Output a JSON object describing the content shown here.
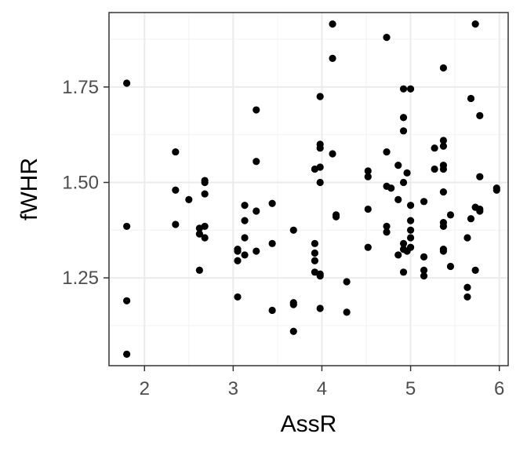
{
  "chart_data": {
    "type": "scatter",
    "title": "",
    "xlabel": "AssR",
    "ylabel": "fWHR",
    "xlim": [
      1.6,
      6.1
    ],
    "ylim": [
      1.02,
      1.945
    ],
    "x_ticks": [
      2,
      3,
      4,
      5,
      6
    ],
    "x_tick_labels": [
      "2",
      "3",
      "4",
      "5",
      "6"
    ],
    "y_ticks": [
      1.25,
      1.5,
      1.75
    ],
    "y_tick_labels": [
      "1.25",
      "1.50",
      "1.75"
    ],
    "x_minor": [
      2.5,
      3.5,
      4.5,
      5.5
    ],
    "y_minor": [
      1.125,
      1.375,
      1.625,
      1.875
    ],
    "grid": true,
    "legend": "none",
    "point_color": "#000000",
    "points": [
      [
        1.8,
        1.76
      ],
      [
        1.8,
        1.385
      ],
      [
        1.8,
        1.19
      ],
      [
        1.8,
        1.05
      ],
      [
        2.35,
        1.58
      ],
      [
        2.35,
        1.48
      ],
      [
        2.35,
        1.39
      ],
      [
        2.5,
        1.455
      ],
      [
        2.62,
        1.38
      ],
      [
        2.62,
        1.365
      ],
      [
        2.62,
        1.27
      ],
      [
        2.68,
        1.505
      ],
      [
        2.68,
        1.5
      ],
      [
        2.68,
        1.47
      ],
      [
        2.68,
        1.385
      ],
      [
        2.68,
        1.355
      ],
      [
        3.05,
        1.325
      ],
      [
        3.05,
        1.32
      ],
      [
        3.05,
        1.295
      ],
      [
        3.05,
        1.2
      ],
      [
        3.13,
        1.44
      ],
      [
        3.13,
        1.4
      ],
      [
        3.13,
        1.355
      ],
      [
        3.13,
        1.31
      ],
      [
        3.26,
        1.69
      ],
      [
        3.26,
        1.555
      ],
      [
        3.26,
        1.425
      ],
      [
        3.26,
        1.32
      ],
      [
        3.44,
        1.445
      ],
      [
        3.44,
        1.34
      ],
      [
        3.44,
        1.165
      ],
      [
        3.68,
        1.375
      ],
      [
        3.68,
        1.185
      ],
      [
        3.68,
        1.18
      ],
      [
        3.68,
        1.11
      ],
      [
        3.92,
        1.535
      ],
      [
        3.92,
        1.34
      ],
      [
        3.92,
        1.315
      ],
      [
        3.92,
        1.295
      ],
      [
        3.92,
        1.265
      ],
      [
        3.98,
        1.725
      ],
      [
        3.98,
        1.6
      ],
      [
        3.98,
        1.59
      ],
      [
        3.98,
        1.54
      ],
      [
        3.98,
        1.5
      ],
      [
        3.98,
        1.26
      ],
      [
        3.98,
        1.255
      ],
      [
        3.98,
        1.17
      ],
      [
        4.12,
        1.915
      ],
      [
        4.12,
        1.825
      ],
      [
        4.12,
        1.575
      ],
      [
        4.16,
        1.415
      ],
      [
        4.16,
        1.41
      ],
      [
        4.28,
        1.24
      ],
      [
        4.28,
        1.16
      ],
      [
        4.52,
        1.53
      ],
      [
        4.52,
        1.515
      ],
      [
        4.52,
        1.43
      ],
      [
        4.52,
        1.33
      ],
      [
        4.73,
        1.88
      ],
      [
        4.73,
        1.58
      ],
      [
        4.73,
        1.49
      ],
      [
        4.73,
        1.385
      ],
      [
        4.73,
        1.37
      ],
      [
        4.78,
        1.485
      ],
      [
        4.86,
        1.545
      ],
      [
        4.86,
        1.455
      ],
      [
        4.86,
        1.31
      ],
      [
        4.92,
        1.745
      ],
      [
        4.92,
        1.67
      ],
      [
        4.92,
        1.635
      ],
      [
        4.92,
        1.5
      ],
      [
        4.92,
        1.34
      ],
      [
        4.92,
        1.325
      ],
      [
        4.92,
        1.265
      ],
      [
        4.96,
        1.525
      ],
      [
        4.96,
        1.32
      ],
      [
        5.0,
        1.745
      ],
      [
        5.0,
        1.44
      ],
      [
        5.0,
        1.4
      ],
      [
        5.0,
        1.375
      ],
      [
        5.0,
        1.355
      ],
      [
        5.0,
        1.33
      ],
      [
        5.15,
        1.45
      ],
      [
        5.15,
        1.305
      ],
      [
        5.15,
        1.27
      ],
      [
        5.15,
        1.255
      ],
      [
        5.27,
        1.59
      ],
      [
        5.27,
        1.535
      ],
      [
        5.37,
        1.8
      ],
      [
        5.37,
        1.61
      ],
      [
        5.37,
        1.595
      ],
      [
        5.37,
        1.545
      ],
      [
        5.37,
        1.535
      ],
      [
        5.37,
        1.475
      ],
      [
        5.37,
        1.395
      ],
      [
        5.37,
        1.385
      ],
      [
        5.37,
        1.325
      ],
      [
        5.37,
        1.32
      ],
      [
        5.45,
        1.415
      ],
      [
        5.45,
        1.28
      ],
      [
        5.64,
        1.355
      ],
      [
        5.64,
        1.225
      ],
      [
        5.64,
        1.2
      ],
      [
        5.68,
        1.72
      ],
      [
        5.68,
        1.405
      ],
      [
        5.73,
        1.915
      ],
      [
        5.73,
        1.435
      ],
      [
        5.73,
        1.27
      ],
      [
        5.78,
        1.675
      ],
      [
        5.78,
        1.515
      ],
      [
        5.78,
        1.43
      ],
      [
        5.78,
        1.425
      ],
      [
        5.97,
        1.485
      ],
      [
        5.97,
        1.48
      ]
    ]
  }
}
